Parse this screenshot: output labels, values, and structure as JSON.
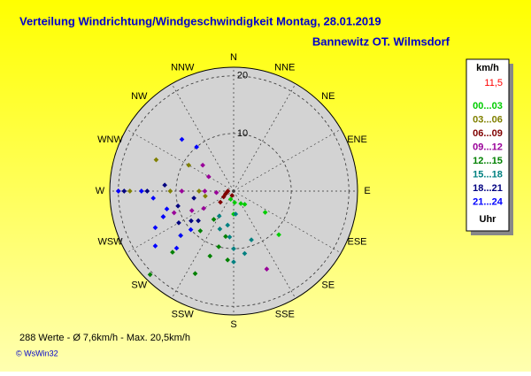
{
  "chart_data": {
    "type": "polar-scatter",
    "title": "Verteilung Windrichtung/Windgeschwindigkeit  Montag, 28.01.2019",
    "subtitle": "Bannewitz OT. Wilmsdorf",
    "direction_labels": [
      "N",
      "NNE",
      "NE",
      "ENE",
      "E",
      "ESE",
      "SE",
      "SSE",
      "S",
      "SSW",
      "SW",
      "WSW",
      "W",
      "WNW",
      "NW",
      "NNW"
    ],
    "rlim": [
      0,
      21.5
    ],
    "rticks": [
      10,
      20
    ],
    "legend_title": "km/h",
    "legend_value": "11,5",
    "legend_value_color": "#ff0000",
    "legend_footer": "Uhr",
    "footer": "288 Werte   -   Ø 7,6km/h  -  Max. 20,5km/h",
    "credit": "© WsWin32",
    "series": [
      {
        "name": "00...03",
        "color": "#00cc00",
        "direction": [
          124,
          134,
          140,
          180,
          175,
          150,
          200
        ],
        "speed": [
          6.6,
          10.9,
          3,
          4,
          2,
          2.5,
          1.5
        ]
      },
      {
        "name": "03...06",
        "color": "#808000",
        "direction": [
          270,
          270,
          292,
          300,
          270,
          260
        ],
        "speed": [
          18,
          11,
          14.5,
          9,
          6,
          5
        ]
      },
      {
        "name": "06...09",
        "color": "#800000",
        "direction": [
          270,
          250,
          240,
          260,
          200,
          230
        ],
        "speed": [
          1,
          1.5,
          2,
          1.2,
          0.8,
          3
        ]
      },
      {
        "name": "09...12",
        "color": "#990099",
        "direction": [
          270,
          270,
          270,
          310,
          250,
          245,
          240,
          157,
          265,
          300
        ],
        "speed": [
          20,
          9,
          5,
          7,
          11,
          8,
          6,
          14.7,
          3,
          5
        ]
      },
      {
        "name": "12...15",
        "color": "#008000",
        "direction": [
          225,
          225,
          230,
          220,
          205,
          200,
          195,
          185,
          190,
          215
        ],
        "speed": [
          20.5,
          15,
          12,
          9,
          15.8,
          12,
          10,
          12,
          8,
          6
        ]
      },
      {
        "name": "15...18",
        "color": "#008080",
        "direction": [
          180,
          180,
          185,
          190,
          175,
          200,
          210,
          170,
          160
        ],
        "speed": [
          12.3,
          10,
          8,
          6,
          4,
          7,
          5,
          11,
          9
        ]
      },
      {
        "name": "18...21",
        "color": "#000080",
        "direction": [
          270,
          270,
          275,
          250,
          255,
          240,
          235,
          260,
          230
        ],
        "speed": [
          19,
          15,
          12,
          13,
          10,
          11,
          9,
          7,
          8
        ]
      },
      {
        "name": "21...24",
        "color": "#0000ff",
        "direction": [
          270,
          270,
          265,
          255,
          250,
          245,
          235,
          230,
          315,
          320,
          225,
          228
        ],
        "speed": [
          20,
          16,
          14,
          12,
          13,
          15,
          16.6,
          12,
          12.7,
          10,
          14,
          10
        ]
      }
    ]
  }
}
